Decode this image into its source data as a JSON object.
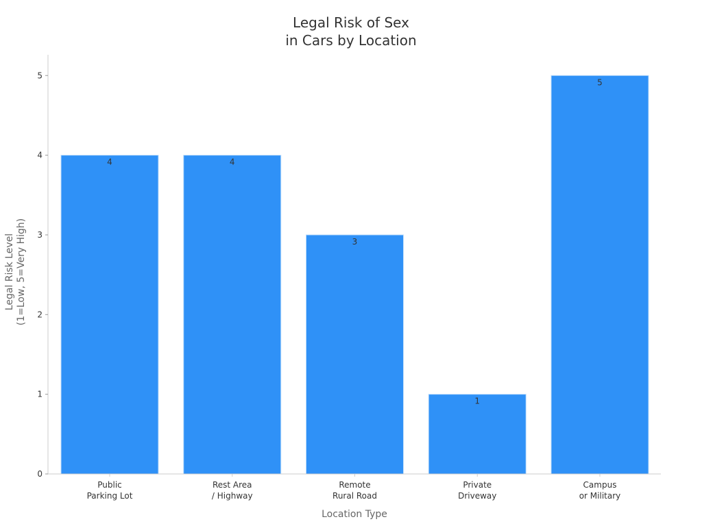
{
  "chart_data": {
    "type": "bar",
    "title": [
      "Legal Risk of Sex",
      "in Cars by Location"
    ],
    "xlabel": "Location Type",
    "ylabel": [
      "Legal Risk Level",
      "(1=Low, 5=Very High)"
    ],
    "categories": [
      [
        "Public",
        "Parking Lot"
      ],
      [
        "Rest Area",
        "/ Highway"
      ],
      [
        "Remote",
        "Rural Road"
      ],
      [
        "Private",
        "Driveway"
      ],
      [
        "Campus",
        "or Military"
      ]
    ],
    "values": [
      4,
      4,
      3,
      1,
      5
    ],
    "yticks": [
      0,
      1,
      2,
      3,
      4,
      5
    ],
    "ylim": [
      0,
      5.26
    ],
    "grid": false,
    "bar_color": "#2F91F7",
    "axis_color": "#cccccc"
  }
}
